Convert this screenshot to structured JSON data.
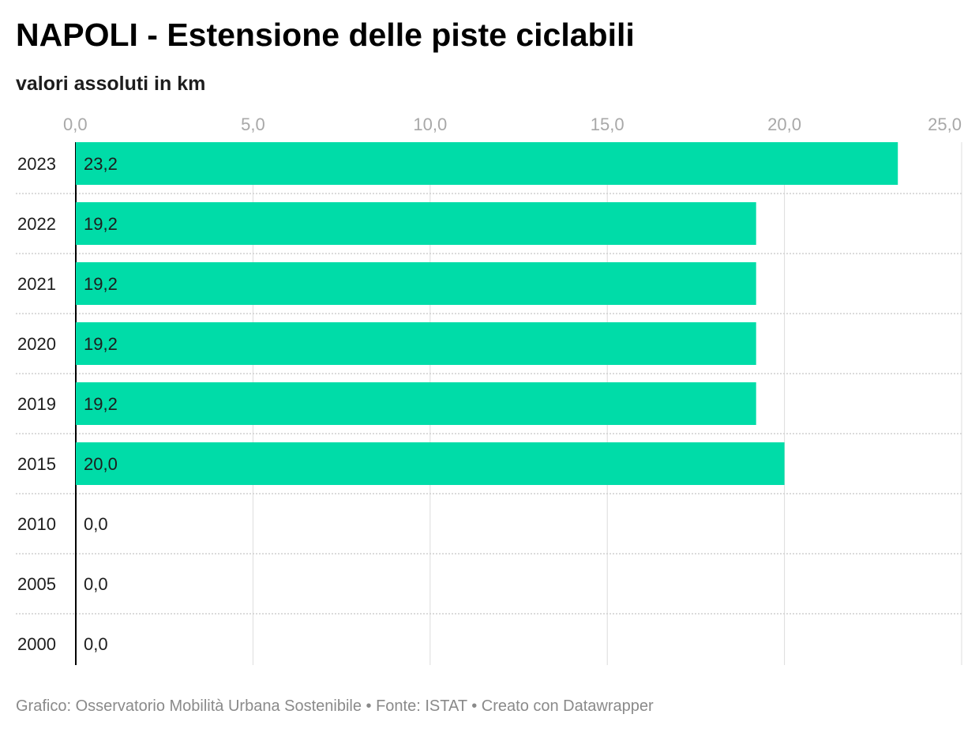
{
  "chart_data": {
    "type": "bar",
    "orientation": "horizontal",
    "title": "NAPOLI - Estensione delle piste ciclabili",
    "subtitle": "valori assoluti in km",
    "categories": [
      "2023",
      "2022",
      "2021",
      "2020",
      "2019",
      "2015",
      "2010",
      "2005",
      "2000"
    ],
    "values": [
      23.2,
      19.2,
      19.2,
      19.2,
      19.2,
      20.0,
      0.0,
      0.0,
      0.0
    ],
    "value_labels": [
      "23,2",
      "19,2",
      "19,2",
      "19,2",
      "19,2",
      "20,0",
      "0,0",
      "0,0",
      "0,0"
    ],
    "xlim": [
      0,
      25
    ],
    "x_ticks": [
      0,
      5,
      10,
      15,
      20,
      25
    ],
    "x_tick_labels": [
      "0,0",
      "5,0",
      "10,0",
      "15,0",
      "20,0",
      "25,0"
    ],
    "grid": true,
    "bar_color": "#00dca8"
  },
  "footer": {
    "text": "Grafico: Osservatorio Mobilità Urbana Sostenibile • Fonte: ISTAT • Creato con Datawrapper"
  }
}
